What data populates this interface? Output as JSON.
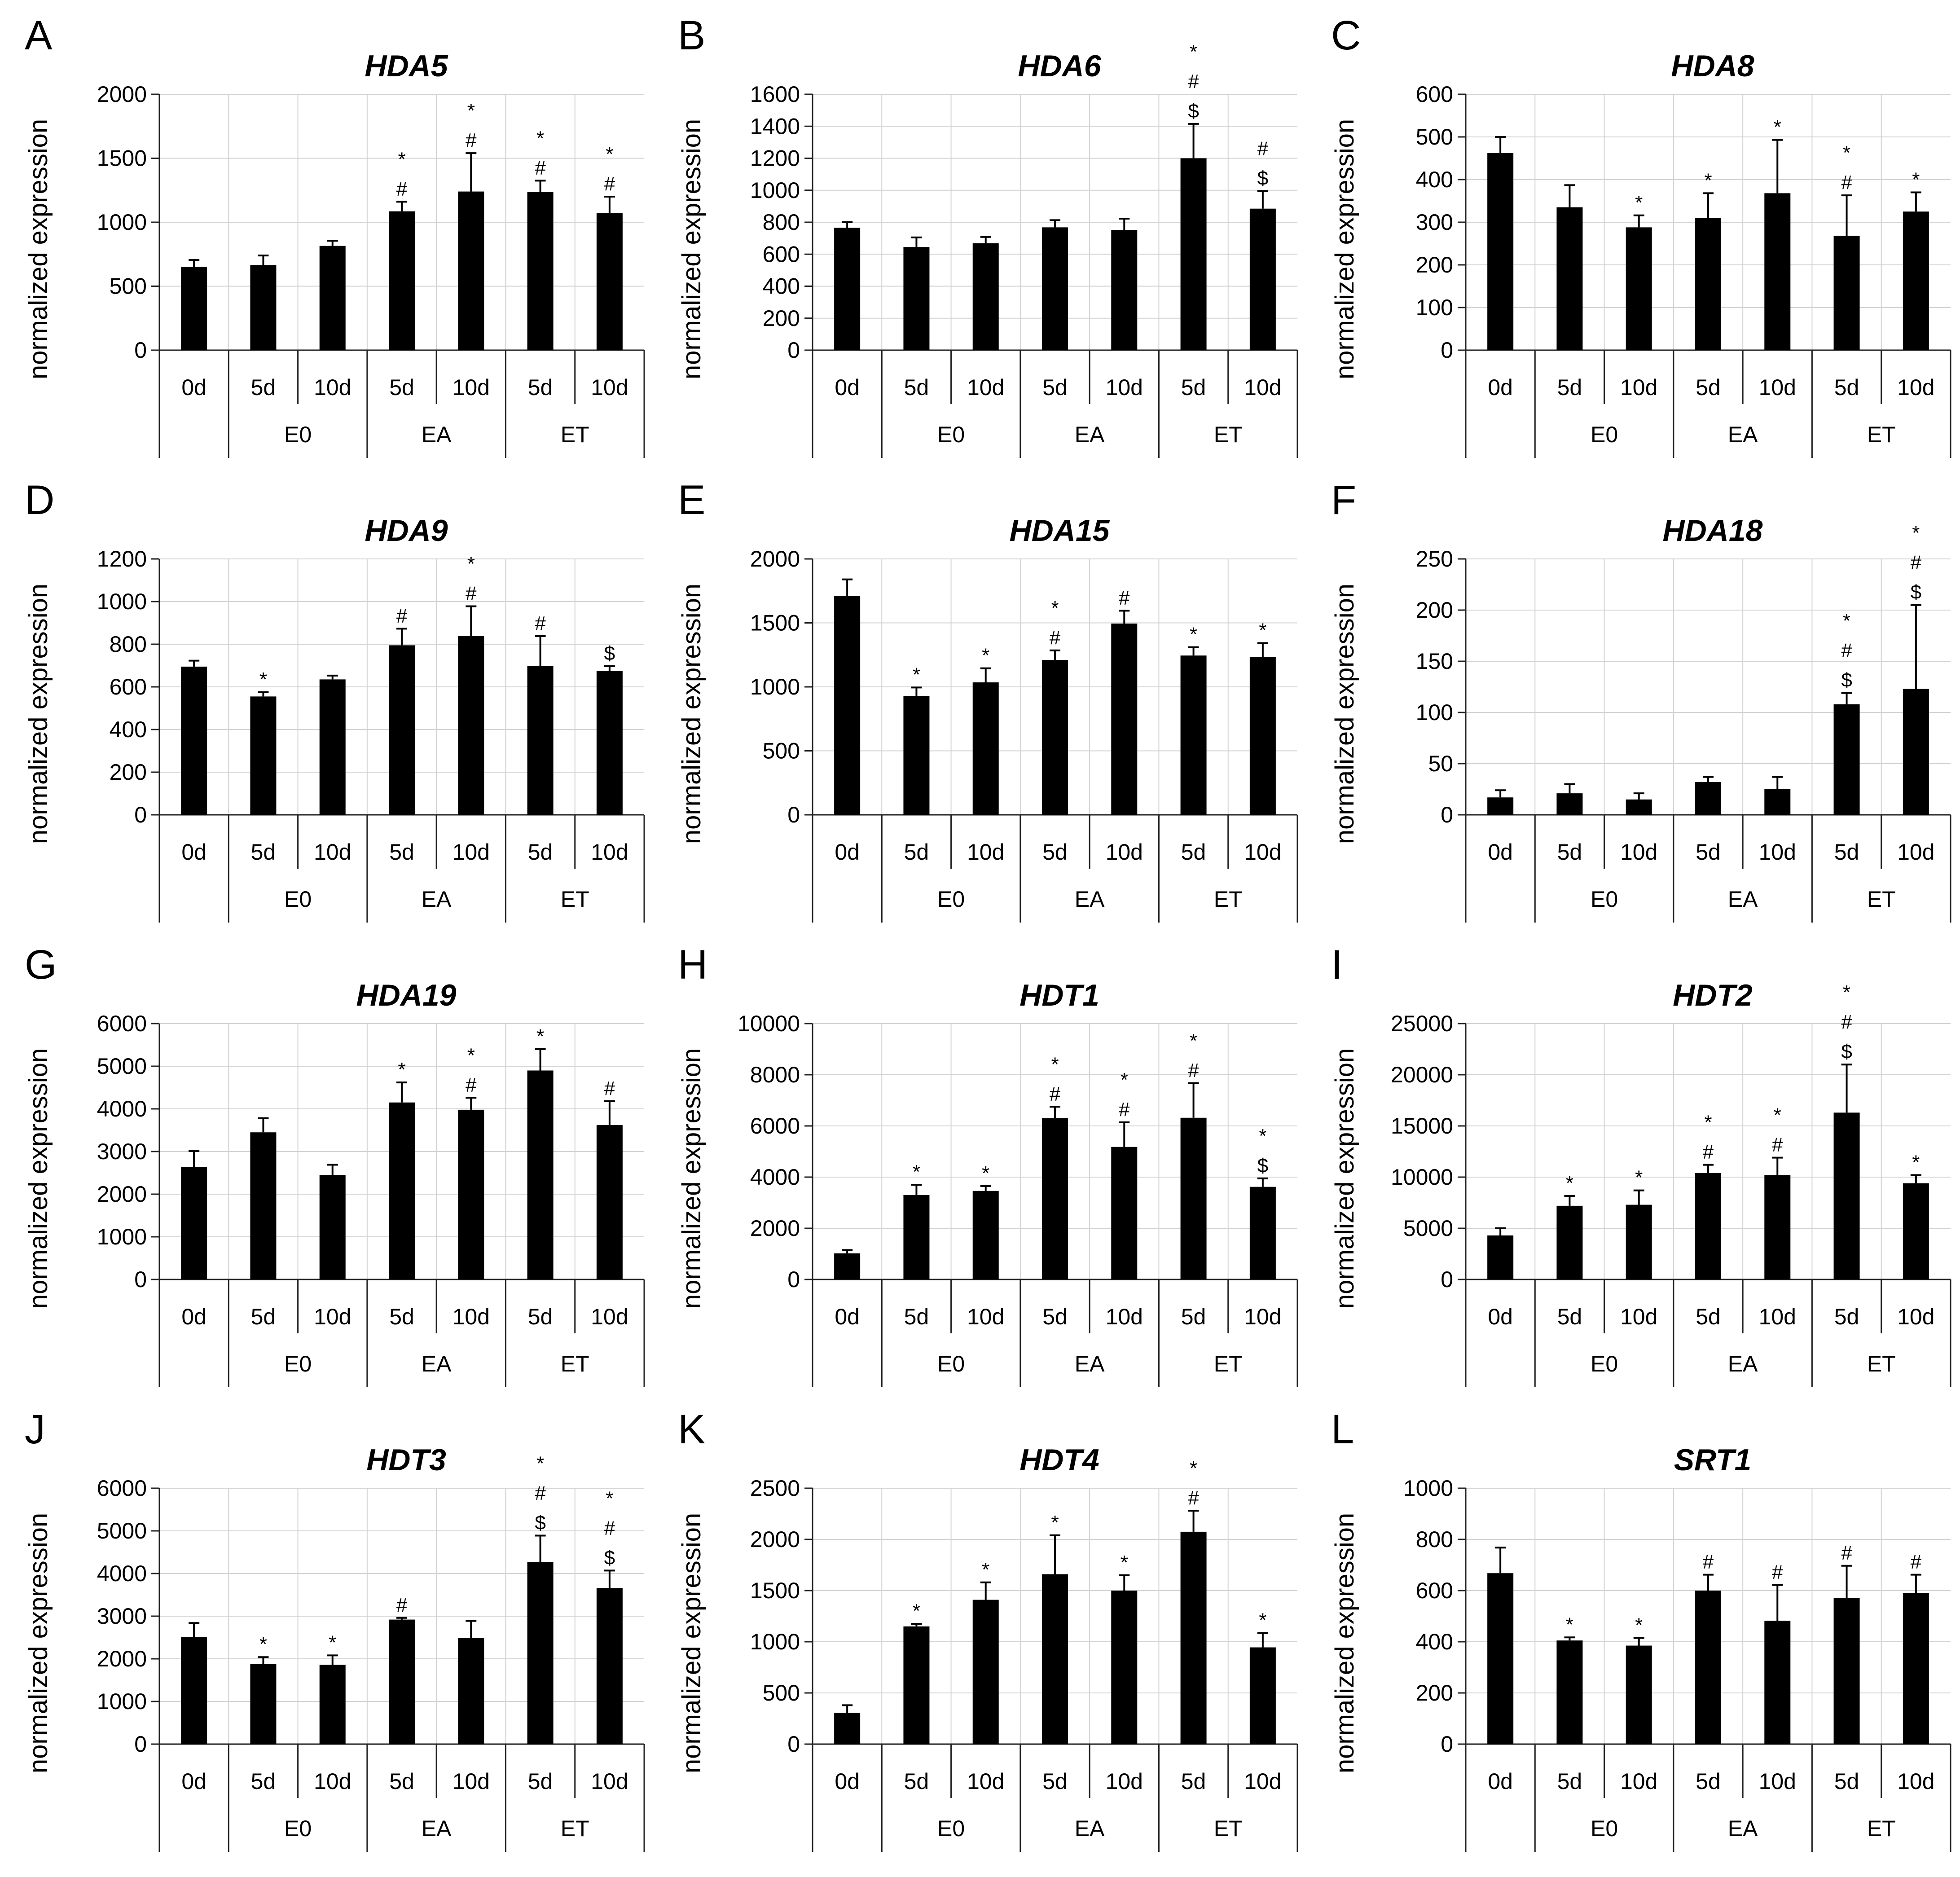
{
  "figure": {
    "x_labels": [
      "0d",
      "5d",
      "10d",
      "5d",
      "10d",
      "5d",
      "10d"
    ],
    "groups": [
      "E0",
      "EA",
      "ET"
    ]
  },
  "chart_data": [
    {
      "letter": "A",
      "type": "bar",
      "title": "HDA5",
      "ylabel": "normalized expression",
      "ylim": [
        0,
        2000
      ],
      "yticks": [
        "0",
        "500",
        "1000",
        "1500",
        "2000"
      ],
      "values": [
        650,
        665,
        815,
        1085,
        1240,
        1235,
        1070
      ],
      "errors": [
        55,
        75,
        40,
        75,
        300,
        90,
        130
      ],
      "sig": [
        "",
        "",
        "",
        "*\n#",
        "*\n#",
        "*\n#",
        "*\n#"
      ]
    },
    {
      "letter": "B",
      "type": "bar",
      "title": "HDA6",
      "ylabel": "normalized expression",
      "ylim": [
        0,
        1600
      ],
      "yticks": [
        "0",
        "200",
        "400",
        "600",
        "800",
        "1000",
        "1200",
        "1400",
        "1600"
      ],
      "values": [
        765,
        645,
        668,
        768,
        752,
        1200,
        885
      ],
      "errors": [
        35,
        60,
        40,
        45,
        70,
        215,
        110
      ],
      "sig": [
        "",
        "",
        "",
        "",
        "",
        "*\n#\n$",
        "#\n$"
      ]
    },
    {
      "letter": "C",
      "type": "bar",
      "title": "HDA8",
      "ylabel": "normalized expression",
      "ylim": [
        0,
        600
      ],
      "yticks": [
        "0",
        "100",
        "200",
        "300",
        "400",
        "500",
        "600"
      ],
      "values": [
        462,
        335,
        288,
        310,
        368,
        268,
        325
      ],
      "errors": [
        38,
        52,
        28,
        58,
        125,
        95,
        45
      ],
      "sig": [
        "",
        "",
        "*",
        "*",
        "*",
        "*\n#",
        "*"
      ]
    },
    {
      "letter": "D",
      "type": "bar",
      "title": "HDA9",
      "ylabel": "normalized expression",
      "ylim": [
        0,
        1200
      ],
      "yticks": [
        "0",
        "200",
        "400",
        "600",
        "800",
        "1000",
        "1200"
      ],
      "values": [
        695,
        555,
        635,
        795,
        838,
        698,
        675
      ],
      "errors": [
        28,
        20,
        18,
        78,
        140,
        140,
        22
      ],
      "sig": [
        "",
        "*",
        "",
        "#",
        "*\n#",
        "#",
        "$"
      ]
    },
    {
      "letter": "E",
      "type": "bar",
      "title": "HDA15",
      "ylabel": "normalized expression",
      "ylim": [
        0,
        2000
      ],
      "yticks": [
        "0",
        "500",
        "1000",
        "1500",
        "2000"
      ],
      "values": [
        1710,
        930,
        1035,
        1210,
        1495,
        1245,
        1232
      ],
      "errors": [
        130,
        65,
        110,
        75,
        100,
        65,
        110
      ],
      "sig": [
        "",
        "*",
        "*",
        "*\n#",
        "#",
        "*",
        "*"
      ]
    },
    {
      "letter": "F",
      "type": "bar",
      "title": "HDA18",
      "ylabel": "normalized expression",
      "ylim": [
        0,
        250
      ],
      "yticks": [
        "0",
        "50",
        "100",
        "150",
        "200",
        "250"
      ],
      "values": [
        17,
        21,
        15,
        32,
        25,
        108,
        123
      ],
      "errors": [
        7,
        9,
        6,
        5,
        12,
        11,
        82
      ],
      "sig": [
        "",
        "",
        "",
        "",
        "",
        "*\n#\n$",
        "*\n#\n$"
      ]
    },
    {
      "letter": "G",
      "type": "bar",
      "title": "HDA19",
      "ylabel": "normalized expression",
      "ylim": [
        0,
        6000
      ],
      "yticks": [
        "0",
        "1000",
        "2000",
        "3000",
        "4000",
        "5000",
        "6000"
      ],
      "values": [
        2640,
        3450,
        2450,
        4150,
        3980,
        4900,
        3620
      ],
      "errors": [
        370,
        330,
        240,
        470,
        280,
        500,
        560
      ],
      "sig": [
        "",
        "",
        "",
        "*",
        "*\n#",
        "*",
        "#"
      ]
    },
    {
      "letter": "H",
      "type": "bar",
      "title": "HDT1",
      "ylabel": "normalized expression",
      "ylim": [
        0,
        10000
      ],
      "yticks": [
        "0",
        "2000",
        "4000",
        "6000",
        "8000",
        "10000"
      ],
      "values": [
        1020,
        3300,
        3460,
        6300,
        5180,
        6320,
        3620
      ],
      "errors": [
        130,
        400,
        190,
        450,
        960,
        1350,
        330
      ],
      "sig": [
        "",
        "*",
        "*",
        "*\n#",
        "*\n#",
        "*\n#",
        "*\n$"
      ]
    },
    {
      "letter": "I",
      "type": "bar",
      "title": "HDT2",
      "ylabel": "normalized expression",
      "ylim": [
        0,
        25000
      ],
      "yticks": [
        "0",
        "5000",
        "10000",
        "15000",
        "20000",
        "25000"
      ],
      "values": [
        4300,
        7200,
        7300,
        10400,
        10200,
        16300,
        9400
      ],
      "errors": [
        700,
        950,
        1400,
        800,
        1700,
        4700,
        800
      ],
      "sig": [
        "",
        "*",
        "*",
        "*\n#",
        "*\n#",
        "*\n#\n$",
        "*"
      ]
    },
    {
      "letter": "J",
      "type": "bar",
      "title": "HDT3",
      "ylabel": "normalized expression",
      "ylim": [
        0,
        6000
      ],
      "yticks": [
        "0",
        "1000",
        "2000",
        "3000",
        "4000",
        "5000",
        "6000"
      ],
      "values": [
        2510,
        1880,
        1860,
        2920,
        2490,
        4270,
        3660
      ],
      "errors": [
        330,
        160,
        220,
        40,
        400,
        620,
        410
      ],
      "sig": [
        "",
        "*",
        "*",
        "#",
        "",
        "*\n#\n$",
        "*\n#\n$"
      ]
    },
    {
      "letter": "K",
      "type": "bar",
      "title": "HDT4",
      "ylabel": "normalized expression",
      "ylim": [
        0,
        2500
      ],
      "yticks": [
        "0",
        "500",
        "1000",
        "1500",
        "2000",
        "2500"
      ],
      "values": [
        305,
        1150,
        1410,
        1660,
        1500,
        2075,
        945
      ],
      "errors": [
        75,
        25,
        170,
        380,
        150,
        205,
        140
      ],
      "sig": [
        "",
        "*",
        "*",
        "*",
        "*",
        "*\n#",
        "*"
      ]
    },
    {
      "letter": "L",
      "type": "bar",
      "title": "SRT1",
      "ylabel": "normalized expression",
      "ylim": [
        0,
        1000
      ],
      "yticks": [
        "0",
        "200",
        "400",
        "600",
        "800",
        "1000"
      ],
      "values": [
        668,
        405,
        385,
        600,
        482,
        572,
        590
      ],
      "errors": [
        100,
        12,
        30,
        62,
        140,
        125,
        72
      ],
      "sig": [
        "",
        "*",
        "*",
        "#",
        "#",
        "#",
        "#"
      ]
    }
  ]
}
